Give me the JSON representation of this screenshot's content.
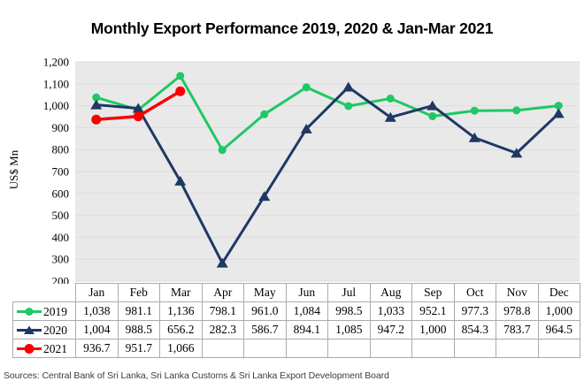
{
  "title": "Monthly Export Performance 2019, 2020 & Jan-Mar 2021",
  "y_axis_label": "US$ Mn",
  "source_note": "Sources: Central Bank of Sri Lanka, Sri Lanka Customs & Sri Lanka Export Development Board",
  "colors": {
    "plot_bg": "#e9e9e9",
    "gridline": "#dcdcdc",
    "table_border": "#ababab",
    "series_2019": "#1ec864",
    "series_2020": "#1f3864",
    "series_2021": "#fb0000"
  },
  "chart_data": {
    "type": "line",
    "title": "Monthly Export Performance 2019, 2020 & Jan-Mar 2021",
    "xlabel": "",
    "ylabel": "US$ Mn",
    "ylim": [
      200,
      1200
    ],
    "grid": true,
    "legend_position": "table-left",
    "categories": [
      "Jan",
      "Feb",
      "Mar",
      "Apr",
      "May",
      "Jun",
      "Jul",
      "Aug",
      "Sep",
      "Oct",
      "Nov",
      "Dec"
    ],
    "yticks": [
      {
        "value": 1200,
        "label": "1,200"
      },
      {
        "value": 1100,
        "label": "1,100"
      },
      {
        "value": 1000,
        "label": "1,000"
      },
      {
        "value": 900,
        "label": "900"
      },
      {
        "value": 800,
        "label": "800"
      },
      {
        "value": 700,
        "label": "700"
      },
      {
        "value": 600,
        "label": "600"
      },
      {
        "value": 500,
        "label": "500"
      },
      {
        "value": 400,
        "label": "400"
      },
      {
        "value": 300,
        "label": "300"
      },
      {
        "value": 200,
        "label": "200"
      }
    ],
    "series": [
      {
        "name": "2019",
        "color": "#1ec864",
        "marker": "circle",
        "values": [
          1038,
          981.1,
          1136,
          798.1,
          961.0,
          1084,
          998.5,
          1033,
          952.1,
          977.3,
          978.8,
          1000
        ],
        "labels": [
          "1,038",
          "981.1",
          "1,136",
          "798.1",
          "961.0",
          "1,084",
          "998.5",
          "1,033",
          "952.1",
          "977.3",
          "978.8",
          "1,000"
        ]
      },
      {
        "name": "2020",
        "color": "#1f3864",
        "marker": "triangle",
        "values": [
          1004,
          988.5,
          656.2,
          282.3,
          586.7,
          894.1,
          1085,
          947.2,
          1000,
          854.3,
          783.7,
          964.5
        ],
        "labels": [
          "1,004",
          "988.5",
          "656.2",
          "282.3",
          "586.7",
          "894.1",
          "1,085",
          "947.2",
          "1,000",
          "854.3",
          "783.7",
          "964.5"
        ]
      },
      {
        "name": "2021",
        "color": "#fb0000",
        "marker": "circle-large",
        "values": [
          936.7,
          951.7,
          1066
        ],
        "labels": [
          "936.7",
          "951.7",
          "1,066"
        ]
      }
    ]
  }
}
